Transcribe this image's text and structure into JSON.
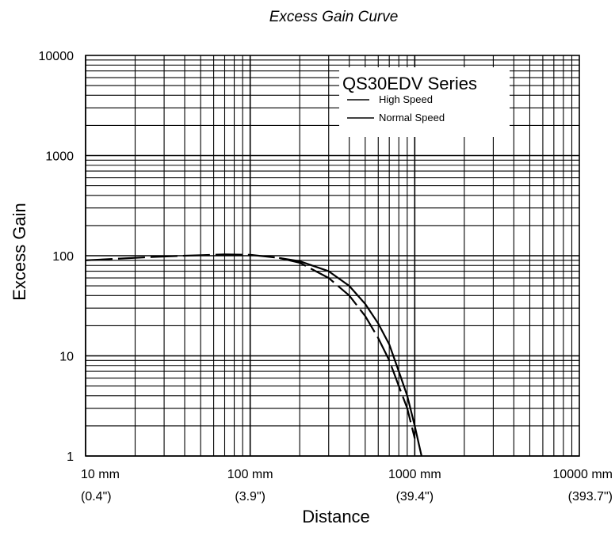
{
  "chart_data": {
    "type": "line",
    "title": "Excess Gain Curve",
    "xlabel": "Distance",
    "ylabel": "Excess Gain",
    "x_scale": "log",
    "y_scale": "log",
    "xlim": [
      10,
      10000
    ],
    "ylim": [
      1,
      10000
    ],
    "grid": true,
    "x_ticks": [
      {
        "value": 10,
        "label": "10 mm",
        "sublabel": "(0.4\")"
      },
      {
        "value": 100,
        "label": "100 mm",
        "sublabel": "(3.9\")"
      },
      {
        "value": 1000,
        "label": "1000 mm",
        "sublabel": "(39.4\")"
      },
      {
        "value": 10000,
        "label": "10000 mm",
        "sublabel": "(393.7\")"
      }
    ],
    "y_ticks": [
      {
        "value": 1,
        "label": "1"
      },
      {
        "value": 10,
        "label": "10"
      },
      {
        "value": 100,
        "label": "100"
      },
      {
        "value": 1000,
        "label": "1000"
      },
      {
        "value": 10000,
        "label": "10000"
      }
    ],
    "legend": {
      "title": "QS30EDV Series",
      "position": "top-right"
    },
    "series": [
      {
        "name": "High Speed",
        "dash": "dashed",
        "x": [
          10,
          15,
          25,
          40,
          70,
          100,
          150,
          200,
          300,
          400,
          500,
          600,
          700,
          800,
          900,
          1000
        ],
        "y": [
          90,
          93,
          97,
          100,
          103,
          102,
          95,
          85,
          60,
          40,
          25,
          15,
          9,
          5,
          3,
          1.5
        ]
      },
      {
        "name": "Normal Speed",
        "dash": "solid",
        "x": [
          150,
          200,
          300,
          400,
          500,
          600,
          700,
          800,
          900,
          1000,
          1100
        ],
        "y": [
          95,
          88,
          70,
          50,
          33,
          21,
          13,
          7,
          4,
          2,
          1
        ]
      }
    ]
  }
}
